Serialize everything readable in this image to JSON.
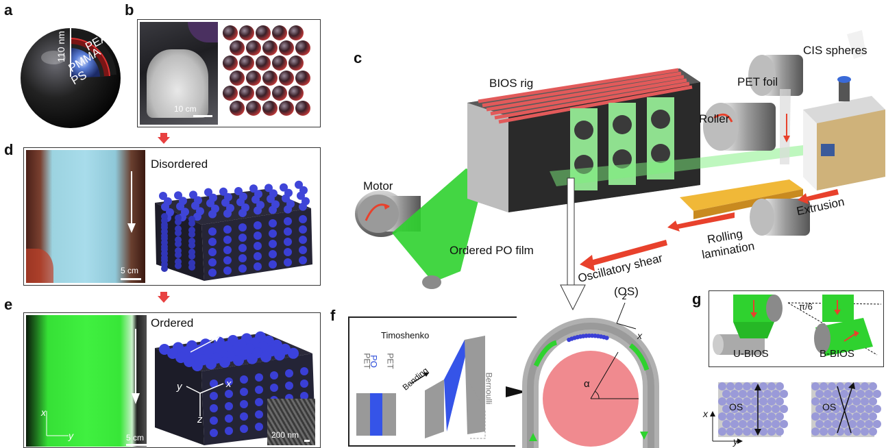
{
  "panels": {
    "a": "a",
    "b": "b",
    "c": "c",
    "d": "d",
    "e": "e",
    "f": "f",
    "g": "g"
  },
  "panel_a": {
    "layers": [
      "PEA",
      "PMMA",
      "PS"
    ],
    "dimension": "110 nm"
  },
  "panel_b": {
    "scalebar": "10 cm"
  },
  "panel_c": {
    "bios_rig": "BIOS rig",
    "pet_foil": "PET foil",
    "cis_spheres": "CIS spheres",
    "roller": "Roller",
    "motor": "Motor",
    "extrusion": "Extrusion",
    "rolling": "Rolling",
    "lamination": "lamination",
    "ordered_film": "Ordered PO film",
    "oscillatory": "Oscillatory shear",
    "os": "(OS)"
  },
  "panel_d": {
    "state": "Disordered",
    "scalebar": "5 cm"
  },
  "panel_e": {
    "state": "Ordered",
    "scalebar": "5 cm",
    "sem_scale": "200 nm",
    "axis_x": "x",
    "axis_y": "y",
    "axis_z": "z"
  },
  "panel_f": {
    "timoshenko": "Timoshenko",
    "bending": "Bending",
    "bernoulli": "Bernoulli",
    "pet_left": "PET",
    "po": "PO",
    "pet_right": "PET",
    "alpha": "α",
    "axis_z": "z",
    "axis_x": "x"
  },
  "panel_g": {
    "u_bios": "U-BIOS",
    "b_bios": "B-BIOS",
    "angle": "π/6",
    "os_left": "OS",
    "os_right": "OS",
    "axis_x": "x",
    "axis_y": "y"
  },
  "colors": {
    "green": "#2fd22f",
    "blue_sphere": "#3a3fd6",
    "red_arrow": "#e8412c",
    "pink": "#f08a8f",
    "gray_rig": "#8a8a8a"
  }
}
